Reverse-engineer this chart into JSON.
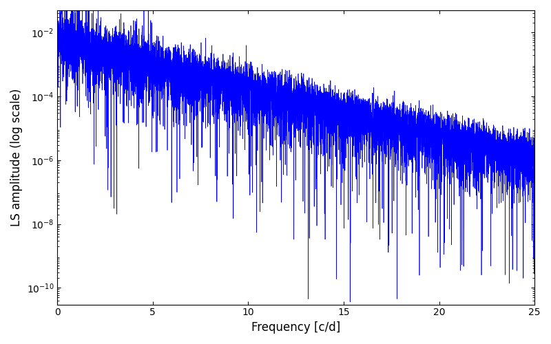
{
  "title": "",
  "xlabel": "Frequency [c/d]",
  "ylabel": "LS amplitude (log scale)",
  "xlim": [
    0,
    25
  ],
  "ylim": [
    3e-11,
    0.05
  ],
  "line_color": "blue",
  "background_color": "#ffffff",
  "figsize": [
    8.0,
    5.0
  ],
  "dpi": 100,
  "freq_min": 0.0,
  "freq_max": 25.0,
  "n_points": 8000,
  "seed": 7,
  "noise_floor": 4e-07,
  "envelope_scale_low": 0.008,
  "envelope_decay": 0.35,
  "yticks": [
    1e-10,
    1e-08,
    1e-06,
    0.0001,
    0.01
  ],
  "ytick_labels": [
    "$10^{-10}$",
    "$10^{-8}$",
    "$10^{-6}$",
    "$10^{-4}$",
    "$10^{-2}$"
  ],
  "xticks": [
    0,
    5,
    10,
    15,
    20,
    25
  ]
}
